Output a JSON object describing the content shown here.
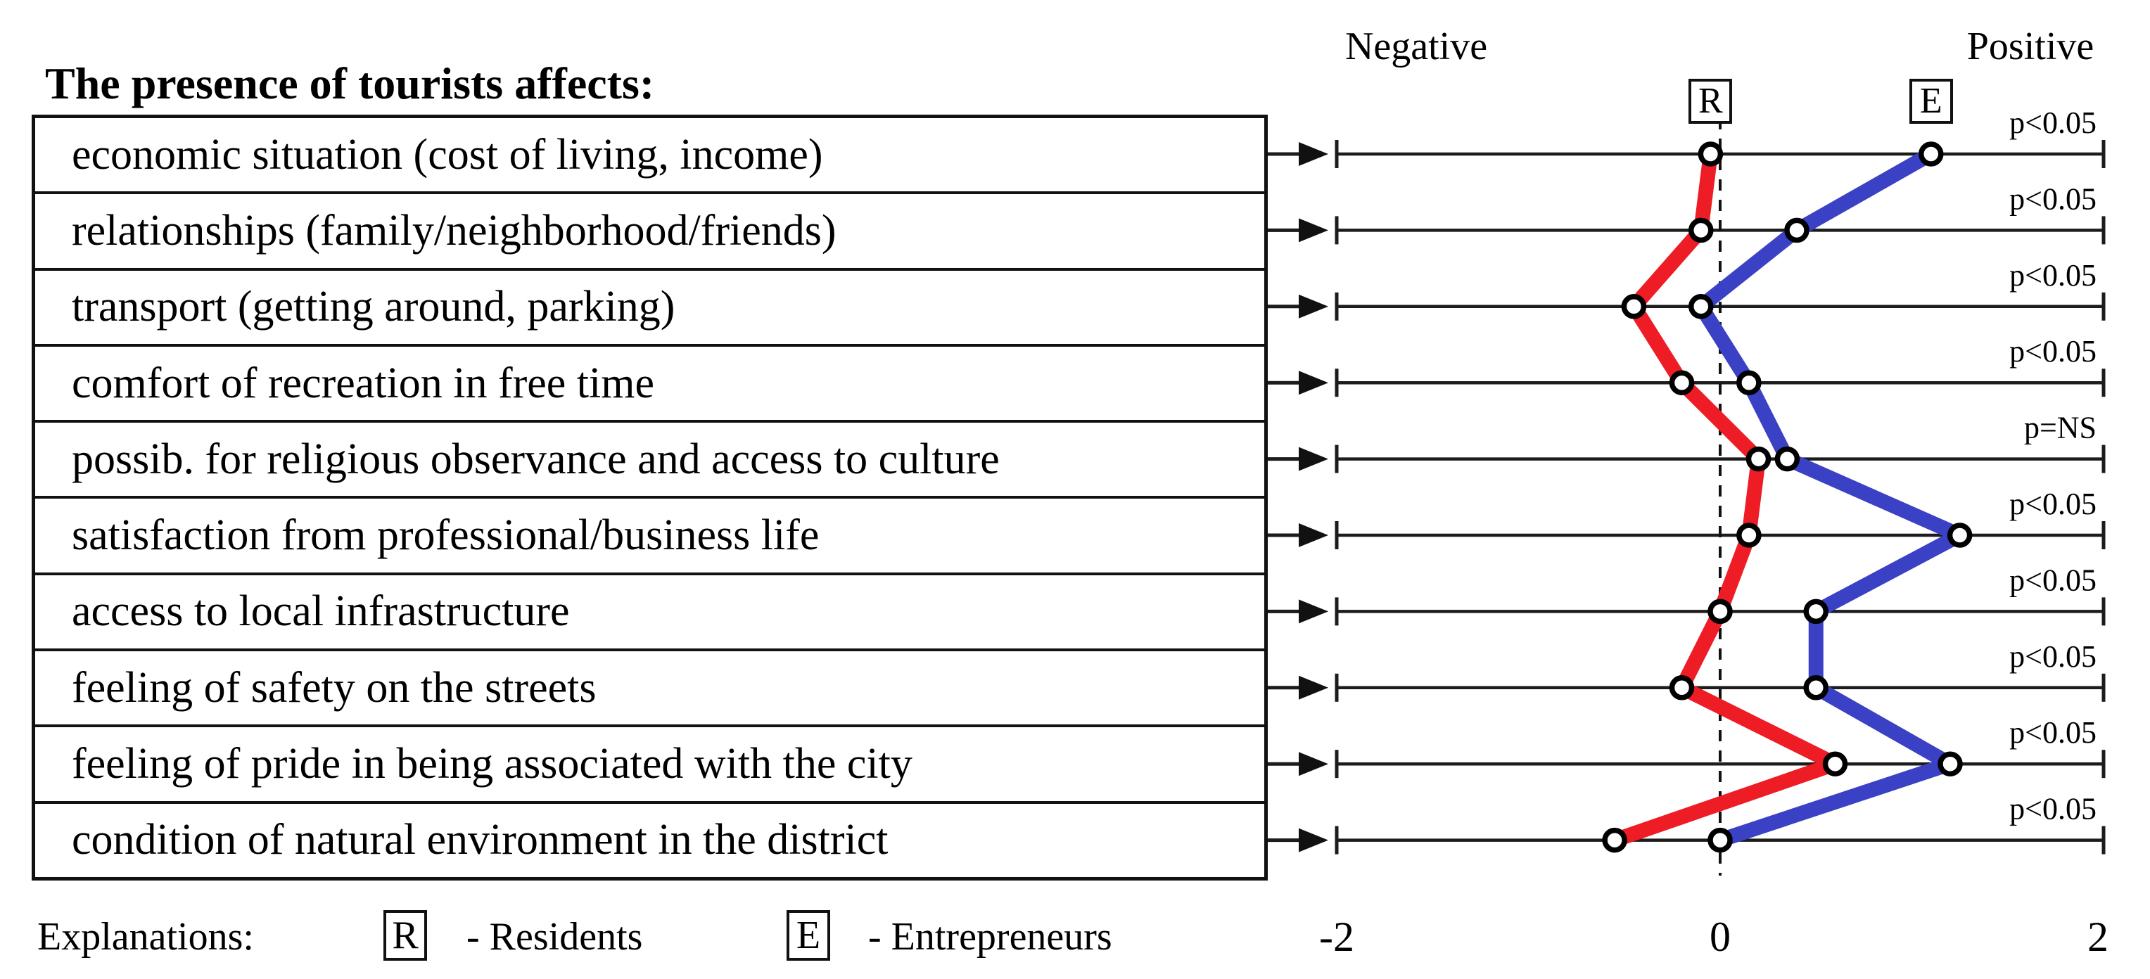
{
  "title": "The presence of tourists affects:",
  "axis_headers": {
    "negative": "Negative",
    "positive": "Positive"
  },
  "series_markers": {
    "residents": "R",
    "entrepreneurs": "E"
  },
  "legend": {
    "label": "Explanations:",
    "items": [
      {
        "symbol": "R",
        "text": "- Residents"
      },
      {
        "symbol": "E",
        "text": "- Entrepreneurs"
      }
    ]
  },
  "colors": {
    "residents": "#ee1c25",
    "entrepreneurs": "#3a41c4",
    "axis": "#1c1c1c"
  },
  "chart_data": {
    "type": "line",
    "orientation": "vertical profile; one horizontal value axis per category row",
    "title": "The presence of tourists affects:",
    "categories": [
      "economic situation (cost of living, income)",
      "relationships (family/neighborhood/friends)",
      "transport (getting around, parking)",
      "comfort of recreation in free time",
      "possib. for religious observance and access to culture",
      "satisfaction from professional/business life",
      "access to local infrastructure",
      "feeling of safety on the streets",
      "feeling of pride in being associated with the city",
      "condition of natural environment in the district"
    ],
    "series": [
      {
        "name": "Residents",
        "marker": "R",
        "color": "#ee1c25",
        "values": [
          -0.05,
          -0.1,
          -0.45,
          -0.2,
          0.2,
          0.15,
          0.0,
          -0.2,
          0.6,
          -0.55
        ]
      },
      {
        "name": "Entrepreneurs",
        "marker": "E",
        "color": "#3a41c4",
        "values": [
          1.1,
          0.4,
          -0.1,
          0.15,
          0.35,
          1.25,
          0.5,
          0.5,
          1.2,
          0.0
        ]
      }
    ],
    "p_values": [
      "p<0.05",
      "p<0.05",
      "p<0.05",
      "p<0.05",
      "p=NS",
      "p<0.05",
      "p<0.05",
      "p<0.05",
      "p<0.05",
      "p<0.05"
    ],
    "x_axis": {
      "min": -2,
      "max": 2,
      "tick_labels": [
        "-2",
        "0",
        "2"
      ],
      "zero_line": "dashed",
      "left_label": "Negative",
      "right_label": "Positive"
    }
  }
}
